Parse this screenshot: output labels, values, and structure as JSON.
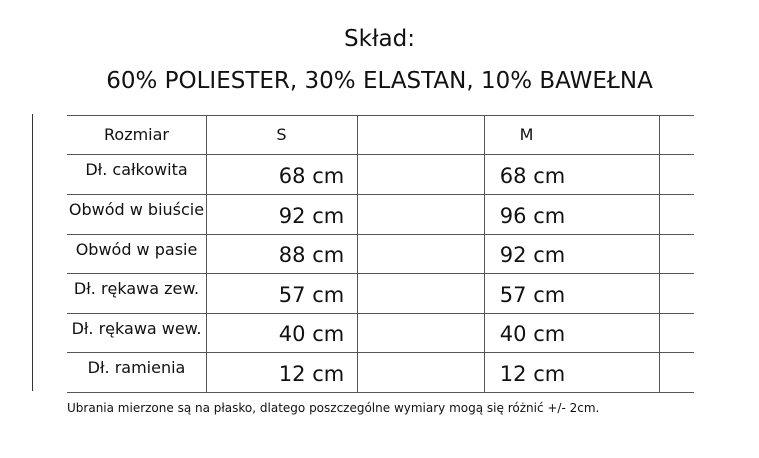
{
  "title": "Skład:",
  "composition": "60% POLIESTER, 30% ELASTAN, 10% BAWEŁNA",
  "table": {
    "headers": [
      "Rozmiar",
      "S",
      "M"
    ],
    "rows": [
      {
        "label": "Dł. całkowita",
        "values": [
          "68 cm",
          "68 cm"
        ]
      },
      {
        "label": "Obwód w biuście",
        "values": [
          "92 cm",
          "96 cm"
        ]
      },
      {
        "label": "Obwód w pasie",
        "values": [
          "88 cm",
          "92 cm"
        ]
      },
      {
        "label": "Dł. rękawa zew.",
        "values": [
          "57 cm",
          "57 cm"
        ]
      },
      {
        "label": "Dł. rękawa wew.",
        "values": [
          "40 cm",
          "40 cm"
        ]
      },
      {
        "label": "Dł. ramienia",
        "values": [
          "12 cm",
          "12 cm"
        ]
      }
    ]
  },
  "note": "Ubrania mierzone są na płasko, dlatego poszczególne wymiary mogą się różnić +/- 2cm."
}
